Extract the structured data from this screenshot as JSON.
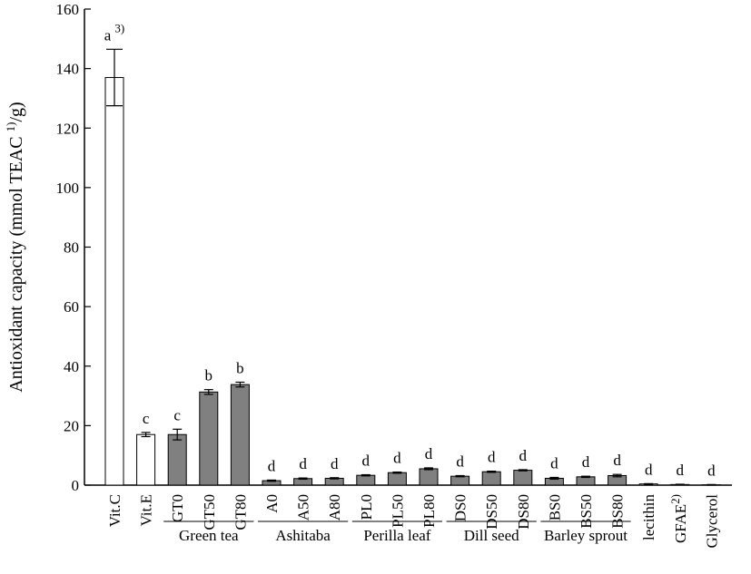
{
  "chart_data": {
    "type": "bar",
    "ylabel_parts": [
      "Antioxidant capacity (mmol TEAC ",
      "1)",
      "/g)"
    ],
    "categories": [
      "Vit.C",
      "Vit.E",
      "GT0",
      "GT50",
      "GT80",
      "A0",
      "A50",
      "A80",
      "PL0",
      "PL50",
      "PL80",
      "DS0",
      "DS50",
      "DS80",
      "BS0",
      "BS50",
      "BS80",
      "lecithin",
      "GFAE",
      "Glycerol"
    ],
    "category_notes": {
      "18": "2)"
    },
    "values": [
      137,
      17,
      17,
      31.3,
      33.8,
      1.5,
      2.2,
      2.3,
      3.3,
      4.2,
      5.5,
      3,
      4.5,
      5,
      2.3,
      2.8,
      3.2,
      0.4,
      0.2,
      0.1
    ],
    "errors": [
      9.5,
      0.7,
      1.8,
      0.8,
      0.8,
      0.2,
      0.2,
      0.2,
      0.2,
      0.2,
      0.3,
      0.2,
      0.2,
      0.2,
      0.3,
      0.2,
      0.4,
      0.1,
      0.1,
      0.1
    ],
    "colors": [
      "#ffffff",
      "#ffffff",
      "#808080",
      "#808080",
      "#808080",
      "#808080",
      "#808080",
      "#808080",
      "#808080",
      "#808080",
      "#808080",
      "#808080",
      "#808080",
      "#808080",
      "#808080",
      "#808080",
      "#808080",
      "#ffffff",
      "#ffffff",
      "#ffffff"
    ],
    "letters": [
      "a",
      "c",
      "c",
      "b",
      "b",
      "d",
      "d",
      "d",
      "d",
      "d",
      "d",
      "d",
      "d",
      "d",
      "d",
      "d",
      "d",
      "d",
      "d",
      "d"
    ],
    "letter_notes": {
      "0": "3)"
    },
    "groups": [
      {
        "name": "Green tea",
        "start": 2,
        "end": 4
      },
      {
        "name": "Ashitaba",
        "start": 5,
        "end": 7
      },
      {
        "name": "Perilla leaf",
        "start": 8,
        "end": 10
      },
      {
        "name": "Dill seed",
        "start": 11,
        "end": 13
      },
      {
        "name": "Barley sprout",
        "start": 14,
        "end": 16
      }
    ],
    "ylim": [
      0,
      160
    ],
    "yticks": [
      0,
      20,
      40,
      60,
      80,
      100,
      120,
      140,
      160
    ]
  }
}
